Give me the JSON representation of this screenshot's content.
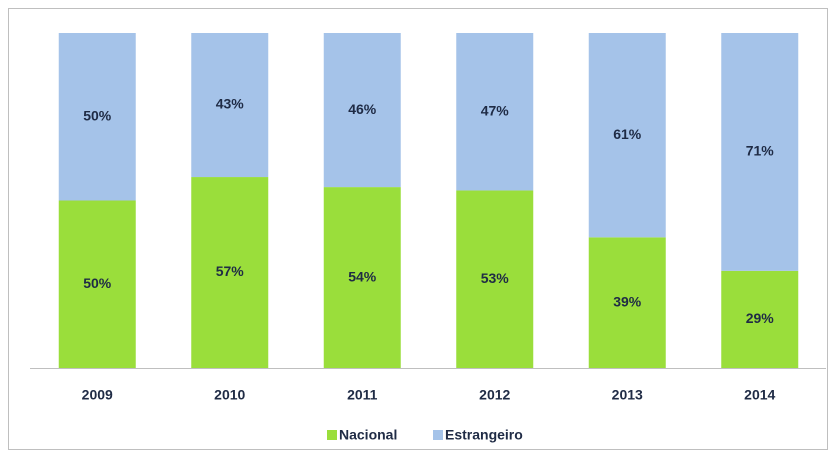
{
  "chart_data": {
    "type": "stacked-bar",
    "categories": [
      "2009",
      "2010",
      "2011",
      "2012",
      "2013",
      "2014"
    ],
    "series": [
      {
        "name": "Nacional",
        "color": "#9ade3b",
        "values": [
          50,
          57,
          54,
          53,
          39,
          29
        ],
        "value_labels": [
          "50%",
          "57%",
          "54%",
          "53%",
          "39%",
          "29%"
        ]
      },
      {
        "name": "Estrangeiro",
        "color": "#a5c3e9",
        "values": [
          50,
          43,
          46,
          47,
          61,
          71
        ],
        "value_labels": [
          "50%",
          "43%",
          "46%",
          "47%",
          "61%",
          "71%"
        ]
      }
    ],
    "ylim": [
      0,
      100
    ],
    "legend": "bottom"
  }
}
